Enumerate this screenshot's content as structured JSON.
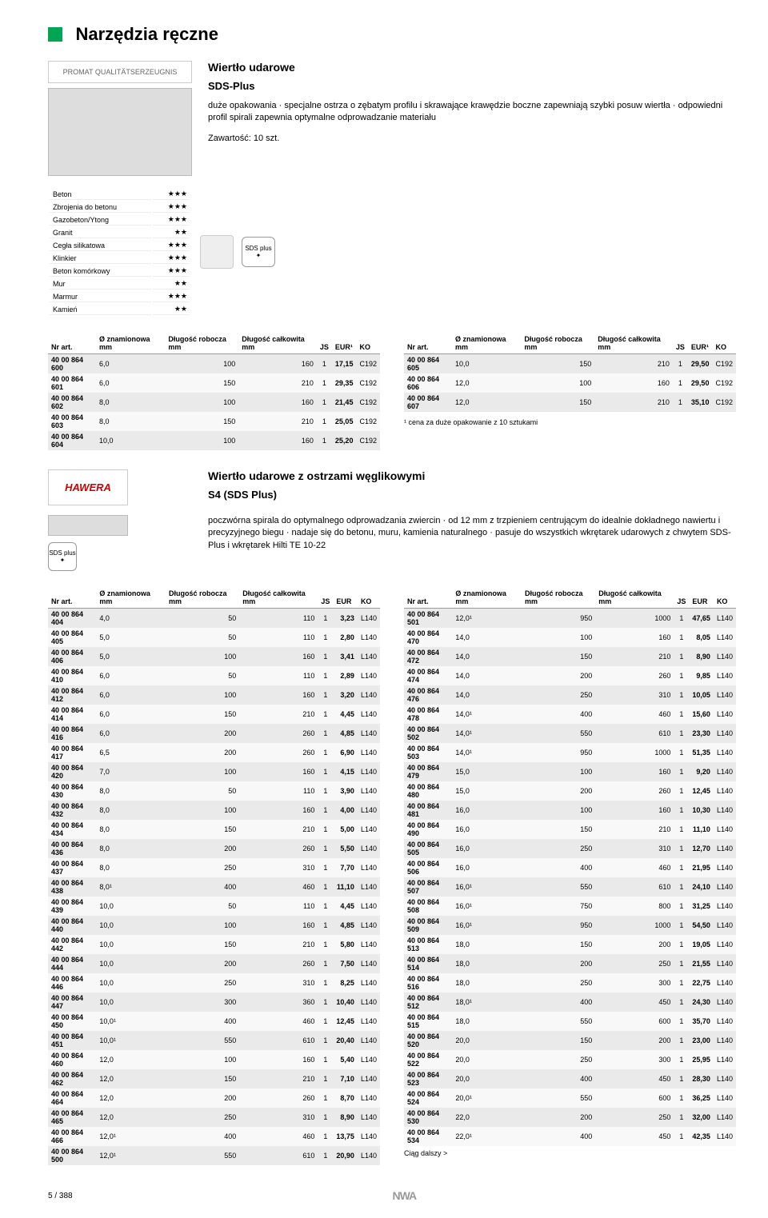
{
  "page": {
    "title": "Narzędzia ręczne",
    "footer_page": "5 / 388",
    "footer_logo": "NWA"
  },
  "section1": {
    "logo_text": "PROMAT QUALITÄTSERZEUGNIS",
    "product_name": "Wiertło udarowe",
    "sub_name": "SDS-Plus",
    "desc": "duże opakowania · specjalne ostrza o zębatym profilu i skrawające krawędzie boczne zapewniają szybki posuw wiertła · odpowiedni profil spirali zapewnia optymalne odprowadzanie materiału",
    "contents": "Zawartość: 10 szt.",
    "sds_label": "SDS plus",
    "materials": [
      [
        "Beton",
        "★★★"
      ],
      [
        "Zbrojenia do betonu",
        "★★★"
      ],
      [
        "Gazobeton/Ytong",
        "★★★"
      ],
      [
        "Granit",
        "★★"
      ],
      [
        "Cegła silikatowa",
        "★★★"
      ],
      [
        "Klinkier",
        "★★★"
      ],
      [
        "Beton komórkowy",
        "★★★"
      ],
      [
        "Mur",
        "★★"
      ],
      [
        "Marmur",
        "★★★"
      ],
      [
        "Kamień",
        "★★"
      ]
    ],
    "cols": [
      "Nr art.",
      "Ø znamionowa mm",
      "Długość robocza mm",
      "Długość całkowita mm",
      "JS",
      "EUR¹",
      "KO"
    ],
    "table_left": [
      [
        "40 00 864 600",
        "6,0",
        "100",
        "160",
        "1",
        "17,15",
        "C192"
      ],
      [
        "40 00 864 601",
        "6,0",
        "150",
        "210",
        "1",
        "29,35",
        "C192"
      ],
      [
        "40 00 864 602",
        "8,0",
        "100",
        "160",
        "1",
        "21,45",
        "C192"
      ],
      [
        "40 00 864 603",
        "8,0",
        "150",
        "210",
        "1",
        "25,05",
        "C192"
      ],
      [
        "40 00 864 604",
        "10,0",
        "100",
        "160",
        "1",
        "25,20",
        "C192"
      ]
    ],
    "table_right": [
      [
        "40 00 864 605",
        "10,0",
        "150",
        "210",
        "1",
        "29,50",
        "C192"
      ],
      [
        "40 00 864 606",
        "12,0",
        "100",
        "160",
        "1",
        "29,50",
        "C192"
      ],
      [
        "40 00 864 607",
        "12,0",
        "150",
        "210",
        "1",
        "35,10",
        "C192"
      ]
    ],
    "footnote": "¹ cena za duże opakowanie z 10 sztukami"
  },
  "section2": {
    "logo_text": "HAWERA",
    "product_name": "Wiertło udarowe z ostrzami węglikowymi",
    "sub_name": "S4 (SDS Plus)",
    "desc": "poczwórna spirala do optymalnego odprowadzania zwiercin · od 12 mm z trzpieniem centrującym do idealnie dokładnego nawiertu i precyzyjnego biegu · nadaje się do betonu, muru, kamienia naturalnego · pasuje do wszystkich wkrętarek udarowych z chwytem SDS-Plus i wkrętarek Hilti TE 10-22",
    "sds_label": "SDS plus",
    "cols": [
      "Nr art.",
      "Ø znamionowa mm",
      "Długość robocza mm",
      "Długość całkowita mm",
      "JS",
      "EUR",
      "KO"
    ],
    "table_left": [
      [
        "40 00 864 404",
        "4,0",
        "50",
        "110",
        "1",
        "3,23",
        "L140"
      ],
      [
        "40 00 864 405",
        "5,0",
        "50",
        "110",
        "1",
        "2,80",
        "L140"
      ],
      [
        "40 00 864 406",
        "5,0",
        "100",
        "160",
        "1",
        "3,41",
        "L140"
      ],
      [
        "40 00 864 410",
        "6,0",
        "50",
        "110",
        "1",
        "2,89",
        "L140"
      ],
      [
        "40 00 864 412",
        "6,0",
        "100",
        "160",
        "1",
        "3,20",
        "L140"
      ],
      [
        "40 00 864 414",
        "6,0",
        "150",
        "210",
        "1",
        "4,45",
        "L140"
      ],
      [
        "40 00 864 416",
        "6,0",
        "200",
        "260",
        "1",
        "4,85",
        "L140"
      ],
      [
        "40 00 864 417",
        "6,5",
        "200",
        "260",
        "1",
        "6,90",
        "L140"
      ],
      [
        "40 00 864 420",
        "7,0",
        "100",
        "160",
        "1",
        "4,15",
        "L140"
      ],
      [
        "40 00 864 430",
        "8,0",
        "50",
        "110",
        "1",
        "3,90",
        "L140"
      ],
      [
        "40 00 864 432",
        "8,0",
        "100",
        "160",
        "1",
        "4,00",
        "L140"
      ],
      [
        "40 00 864 434",
        "8,0",
        "150",
        "210",
        "1",
        "5,00",
        "L140"
      ],
      [
        "40 00 864 436",
        "8,0",
        "200",
        "260",
        "1",
        "5,50",
        "L140"
      ],
      [
        "40 00 864 437",
        "8,0",
        "250",
        "310",
        "1",
        "7,70",
        "L140"
      ],
      [
        "40 00 864 438",
        "8,0¹",
        "400",
        "460",
        "1",
        "11,10",
        "L140"
      ],
      [
        "40 00 864 439",
        "10,0",
        "50",
        "110",
        "1",
        "4,45",
        "L140"
      ],
      [
        "40 00 864 440",
        "10,0",
        "100",
        "160",
        "1",
        "4,85",
        "L140"
      ],
      [
        "40 00 864 442",
        "10,0",
        "150",
        "210",
        "1",
        "5,80",
        "L140"
      ],
      [
        "40 00 864 444",
        "10,0",
        "200",
        "260",
        "1",
        "7,50",
        "L140"
      ],
      [
        "40 00 864 446",
        "10,0",
        "250",
        "310",
        "1",
        "8,25",
        "L140"
      ],
      [
        "40 00 864 447",
        "10,0",
        "300",
        "360",
        "1",
        "10,40",
        "L140"
      ],
      [
        "40 00 864 450",
        "10,0¹",
        "400",
        "460",
        "1",
        "12,45",
        "L140"
      ],
      [
        "40 00 864 451",
        "10,0¹",
        "550",
        "610",
        "1",
        "20,40",
        "L140"
      ],
      [
        "40 00 864 460",
        "12,0",
        "100",
        "160",
        "1",
        "5,40",
        "L140"
      ],
      [
        "40 00 864 462",
        "12,0",
        "150",
        "210",
        "1",
        "7,10",
        "L140"
      ],
      [
        "40 00 864 464",
        "12,0",
        "200",
        "260",
        "1",
        "8,70",
        "L140"
      ],
      [
        "40 00 864 465",
        "12,0",
        "250",
        "310",
        "1",
        "8,90",
        "L140"
      ],
      [
        "40 00 864 466",
        "12,0¹",
        "400",
        "460",
        "1",
        "13,75",
        "L140"
      ],
      [
        "40 00 864 500",
        "12,0¹",
        "550",
        "610",
        "1",
        "20,90",
        "L140"
      ]
    ],
    "table_right": [
      [
        "40 00 864 501",
        "12,0¹",
        "950",
        "1000",
        "1",
        "47,65",
        "L140"
      ],
      [
        "40 00 864 470",
        "14,0",
        "100",
        "160",
        "1",
        "8,05",
        "L140"
      ],
      [
        "40 00 864 472",
        "14,0",
        "150",
        "210",
        "1",
        "8,90",
        "L140"
      ],
      [
        "40 00 864 474",
        "14,0",
        "200",
        "260",
        "1",
        "9,85",
        "L140"
      ],
      [
        "40 00 864 476",
        "14,0",
        "250",
        "310",
        "1",
        "10,05",
        "L140"
      ],
      [
        "40 00 864 478",
        "14,0¹",
        "400",
        "460",
        "1",
        "15,60",
        "L140"
      ],
      [
        "40 00 864 502",
        "14,0¹",
        "550",
        "610",
        "1",
        "23,30",
        "L140"
      ],
      [
        "40 00 864 503",
        "14,0¹",
        "950",
        "1000",
        "1",
        "51,35",
        "L140"
      ],
      [
        "40 00 864 479",
        "15,0",
        "100",
        "160",
        "1",
        "9,20",
        "L140"
      ],
      [
        "40 00 864 480",
        "15,0",
        "200",
        "260",
        "1",
        "12,45",
        "L140"
      ],
      [
        "40 00 864 481",
        "16,0",
        "100",
        "160",
        "1",
        "10,30",
        "L140"
      ],
      [
        "40 00 864 490",
        "16,0",
        "150",
        "210",
        "1",
        "11,10",
        "L140"
      ],
      [
        "40 00 864 505",
        "16,0",
        "250",
        "310",
        "1",
        "12,70",
        "L140"
      ],
      [
        "40 00 864 506",
        "16,0",
        "400",
        "460",
        "1",
        "21,95",
        "L140"
      ],
      [
        "40 00 864 507",
        "16,0¹",
        "550",
        "610",
        "1",
        "24,10",
        "L140"
      ],
      [
        "40 00 864 508",
        "16,0¹",
        "750",
        "800",
        "1",
        "31,25",
        "L140"
      ],
      [
        "40 00 864 509",
        "16,0¹",
        "950",
        "1000",
        "1",
        "54,50",
        "L140"
      ],
      [
        "40 00 864 513",
        "18,0",
        "150",
        "200",
        "1",
        "19,05",
        "L140"
      ],
      [
        "40 00 864 514",
        "18,0",
        "200",
        "250",
        "1",
        "21,55",
        "L140"
      ],
      [
        "40 00 864 516",
        "18,0",
        "250",
        "300",
        "1",
        "22,75",
        "L140"
      ],
      [
        "40 00 864 512",
        "18,0¹",
        "400",
        "450",
        "1",
        "24,30",
        "L140"
      ],
      [
        "40 00 864 515",
        "18,0",
        "550",
        "600",
        "1",
        "35,70",
        "L140"
      ],
      [
        "40 00 864 520",
        "20,0",
        "150",
        "200",
        "1",
        "23,00",
        "L140"
      ],
      [
        "40 00 864 522",
        "20,0",
        "250",
        "300",
        "1",
        "25,95",
        "L140"
      ],
      [
        "40 00 864 523",
        "20,0",
        "400",
        "450",
        "1",
        "28,30",
        "L140"
      ],
      [
        "40 00 864 524",
        "20,0¹",
        "550",
        "600",
        "1",
        "36,25",
        "L140"
      ],
      [
        "40 00 864 530",
        "22,0",
        "200",
        "250",
        "1",
        "32,00",
        "L140"
      ],
      [
        "40 00 864 534",
        "22,0¹",
        "400",
        "450",
        "1",
        "42,35",
        "L140"
      ]
    ],
    "continue": "Ciąg dalszy >"
  }
}
